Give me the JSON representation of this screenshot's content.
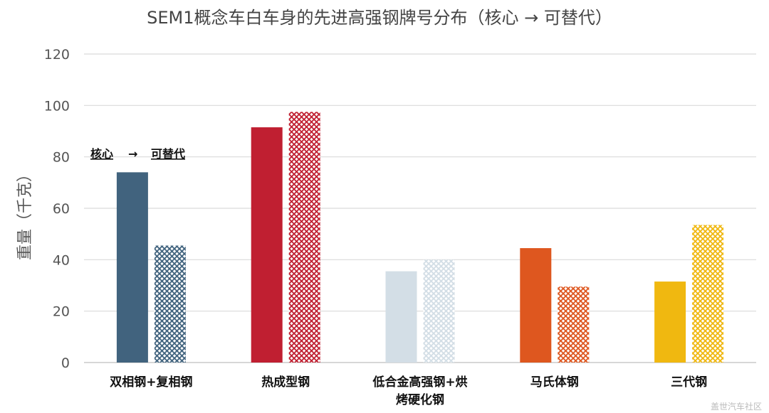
{
  "chart_data": {
    "type": "bar",
    "title": "SEM1概念车白车身的先进高强钢牌号分布（核心 → 可替代）",
    "ylabel": "重量（千克）",
    "xlabel": "",
    "ylim": [
      0,
      120
    ],
    "yticks": [
      0,
      20,
      40,
      60,
      80,
      100,
      120
    ],
    "grid": true,
    "annotation": {
      "core": "核心",
      "arrow": "→",
      "alternative": "可替代"
    },
    "categories": [
      {
        "label_lines": [
          "双相钢+复相钢"
        ],
        "core": 74,
        "alternative": 45.5,
        "color": "#41637e"
      },
      {
        "label_lines": [
          "热成型钢"
        ],
        "core": 91.5,
        "alternative": 97.5,
        "color": "#c01f31"
      },
      {
        "label_lines": [
          "低合金高强钢+烘",
          "烤硬化钢"
        ],
        "core": 35.5,
        "alternative": 40,
        "color": "#d3dee6"
      },
      {
        "label_lines": [
          "马氏体钢"
        ],
        "core": 44.5,
        "alternative": 29.5,
        "color": "#de571f"
      },
      {
        "label_lines": [
          "三代钢"
        ],
        "core": 31.5,
        "alternative": 53.5,
        "color": "#f0b810"
      }
    ],
    "series_style": {
      "core": "solid",
      "alternative": "hatched"
    }
  },
  "watermark": "盖世汽车社区"
}
